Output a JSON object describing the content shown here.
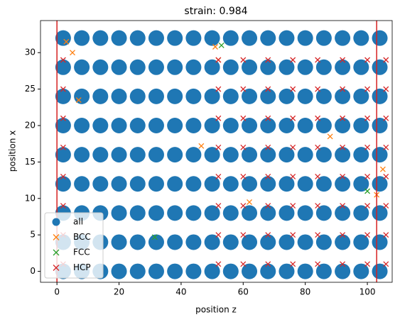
{
  "chart_data": {
    "type": "scatter",
    "title": "strain: 0.984",
    "x_label": "position z",
    "y_label": "position x",
    "xlim": [
      -5.3,
      108
    ],
    "ylim": [
      -1.5,
      34.4
    ],
    "xticks": [
      0,
      20,
      40,
      60,
      80,
      100
    ],
    "yticks": [
      0,
      5,
      10,
      15,
      20,
      25,
      30
    ],
    "vlines": [
      0,
      103
    ],
    "vline_color": "#d62020",
    "legend": "lower left",
    "series": [
      {
        "name": "all",
        "color": "#1f77b4",
        "marker": "o",
        "x": [
          2,
          8,
          14,
          20,
          26,
          32,
          38,
          44,
          50,
          56,
          62,
          68,
          74,
          80,
          86,
          92,
          98,
          104,
          2,
          8,
          14,
          20,
          26,
          32,
          38,
          44,
          50,
          56,
          62,
          68,
          74,
          80,
          86,
          92,
          98,
          104,
          2,
          8,
          14,
          20,
          26,
          32,
          38,
          44,
          50,
          56,
          62,
          68,
          74,
          80,
          86,
          92,
          98,
          104,
          2,
          8,
          14,
          20,
          26,
          32,
          38,
          44,
          50,
          56,
          62,
          68,
          74,
          80,
          86,
          92,
          98,
          104,
          2,
          8,
          14,
          20,
          26,
          32,
          38,
          44,
          50,
          56,
          62,
          68,
          74,
          80,
          86,
          92,
          98,
          104,
          2,
          8,
          14,
          20,
          26,
          32,
          38,
          44,
          50,
          56,
          62,
          68,
          74,
          80,
          86,
          92,
          98,
          104,
          2,
          8,
          14,
          20,
          26,
          32,
          38,
          44,
          50,
          56,
          62,
          68,
          74,
          80,
          86,
          92,
          98,
          104,
          2,
          8,
          14,
          20,
          26,
          32,
          38,
          44,
          50,
          56,
          62,
          68,
          74,
          80,
          86,
          92,
          98,
          104,
          2,
          8,
          14,
          20,
          26,
          32,
          38,
          44,
          50,
          56,
          62,
          68,
          74,
          80,
          86,
          92,
          98,
          104
        ],
        "y": [
          0,
          0,
          0,
          0,
          0,
          0,
          0,
          0,
          0,
          0,
          0,
          0,
          0,
          0,
          0,
          0,
          0,
          0,
          4,
          4,
          4,
          4,
          4,
          4,
          4,
          4,
          4,
          4,
          4,
          4,
          4,
          4,
          4,
          4,
          4,
          4,
          8,
          8,
          8,
          8,
          8,
          8,
          8,
          8,
          8,
          8,
          8,
          8,
          8,
          8,
          8,
          8,
          8,
          8,
          12,
          12,
          12,
          12,
          12,
          12,
          12,
          12,
          12,
          12,
          12,
          12,
          12,
          12,
          12,
          12,
          12,
          12,
          16,
          16,
          16,
          16,
          16,
          16,
          16,
          16,
          16,
          16,
          16,
          16,
          16,
          16,
          16,
          16,
          16,
          16,
          20,
          20,
          20,
          20,
          20,
          20,
          20,
          20,
          20,
          20,
          20,
          20,
          20,
          20,
          20,
          20,
          20,
          20,
          24,
          24,
          24,
          24,
          24,
          24,
          24,
          24,
          24,
          24,
          24,
          24,
          24,
          24,
          24,
          24,
          24,
          24,
          28,
          28,
          28,
          28,
          28,
          28,
          28,
          28,
          28,
          28,
          28,
          28,
          28,
          28,
          28,
          28,
          28,
          28,
          32,
          32,
          32,
          32,
          32,
          32,
          32,
          32,
          32,
          32,
          32,
          32,
          32,
          32,
          32,
          32,
          32,
          32
        ]
      },
      {
        "name": "BCC",
        "color": "#ff7f0e",
        "marker": "x",
        "x": [
          3,
          5,
          7,
          46.5,
          51,
          52,
          62,
          88,
          103,
          105
        ],
        "y": [
          31.5,
          30,
          23.5,
          17.2,
          30.8,
          29,
          9.5,
          18.5,
          10.5,
          14
        ]
      },
      {
        "name": "FCC",
        "color": "#2ca02c",
        "marker": "x",
        "x": [
          31.5,
          53,
          100
        ],
        "y": [
          4.7,
          31,
          11
        ]
      },
      {
        "name": "HCP",
        "color": "#d62728",
        "marker": "x",
        "x": [
          2,
          52,
          60,
          68,
          76,
          84,
          92,
          100,
          106,
          2,
          52,
          60,
          68,
          76,
          84,
          92,
          100,
          106,
          2,
          52,
          60,
          68,
          76,
          84,
          92,
          100,
          106,
          2,
          52,
          60,
          68,
          76,
          84,
          92,
          100,
          106,
          2,
          52,
          60,
          68,
          76,
          84,
          92,
          100,
          106,
          2,
          52,
          60,
          68,
          76,
          84,
          92,
          100,
          106,
          2,
          52,
          60,
          68,
          76,
          84,
          92,
          100,
          106,
          2,
          52,
          60,
          68,
          76,
          84,
          92,
          100,
          106
        ],
        "y": [
          1,
          1,
          1,
          1,
          1,
          1,
          1,
          1,
          1,
          5,
          5,
          5,
          5,
          5,
          5,
          5,
          5,
          5,
          9,
          9,
          9,
          9,
          9,
          9,
          9,
          9,
          9,
          13,
          13,
          13,
          13,
          13,
          13,
          13,
          13,
          13,
          17,
          17,
          17,
          17,
          17,
          17,
          17,
          17,
          17,
          21,
          21,
          21,
          21,
          21,
          21,
          21,
          21,
          21,
          25,
          25,
          25,
          25,
          25,
          25,
          25,
          25,
          25,
          29,
          29,
          29,
          29,
          29,
          29,
          29,
          29,
          29
        ]
      }
    ]
  }
}
